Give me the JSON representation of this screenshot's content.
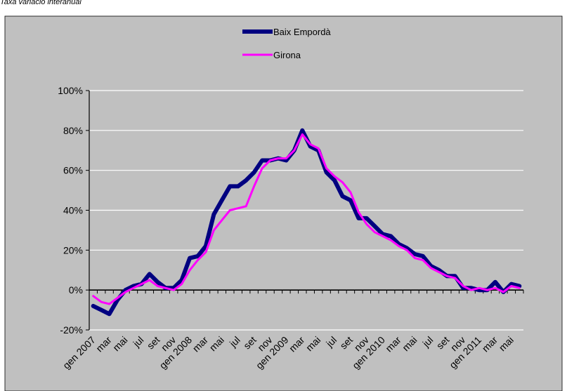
{
  "header": {
    "subtitle": "Taxa variació interanual"
  },
  "chart_data": {
    "type": "line",
    "title": "",
    "xlabel": "",
    "ylabel": "",
    "ylim": [
      -20,
      100
    ],
    "y_ticks": [
      "-20%",
      "0%",
      "20%",
      "40%",
      "60%",
      "80%",
      "100%"
    ],
    "y_tick_values": [
      -20,
      0,
      20,
      40,
      60,
      80,
      100
    ],
    "grid": true,
    "legend_position": "top-center",
    "plot_background": "#c0c0c0",
    "categories": [
      "gen 2007",
      "feb",
      "mar",
      "abr",
      "mai",
      "jun",
      "jul",
      "ago",
      "set",
      "oct",
      "nov",
      "des",
      "gen 2008",
      "feb",
      "mar",
      "abr",
      "mai",
      "jun",
      "jul",
      "ago",
      "set",
      "oct",
      "nov",
      "des",
      "gen 2009",
      "feb",
      "mar",
      "abr",
      "mai",
      "jun",
      "jul",
      "ago",
      "set",
      "oct",
      "nov",
      "des",
      "gen 2010",
      "feb",
      "mar",
      "abr",
      "mai",
      "jun",
      "jul",
      "ago",
      "set",
      "oct",
      "nov",
      "des",
      "gen 2011",
      "feb",
      "mar",
      "abr",
      "mai",
      "jun"
    ],
    "x_tick_labels": [
      "gen 2007",
      "mar",
      "mai",
      "jul",
      "set",
      "nov",
      "gen 2008",
      "mar",
      "mai",
      "jul",
      "set",
      "nov",
      "gen 2009",
      "mar",
      "mai",
      "jul",
      "set",
      "nov",
      "gen 2010",
      "mar",
      "mai",
      "jul",
      "set",
      "nov",
      "gen 2011",
      "mar",
      "mai"
    ],
    "series": [
      {
        "name": "Baix Empordà",
        "color": "#000080",
        "values": [
          -8,
          -10,
          -12,
          -5,
          0,
          2,
          3,
          8,
          4,
          1,
          1,
          5,
          16,
          17,
          22,
          38,
          45,
          52,
          52,
          55,
          59,
          65,
          65,
          66,
          65,
          70,
          80,
          72,
          70,
          59,
          55,
          47,
          45,
          36,
          36,
          32,
          28,
          27,
          23,
          21,
          18,
          17,
          12,
          10,
          7,
          7,
          1,
          1,
          0,
          0,
          4,
          -1,
          3,
          2
        ]
      },
      {
        "name": "Girona",
        "color": "#ff00ff",
        "values": [
          -3,
          -6,
          -7,
          -4,
          -1,
          1,
          3,
          5,
          2,
          1,
          0,
          3,
          10,
          15,
          19,
          30,
          35,
          40,
          41,
          42,
          52,
          61,
          65,
          66,
          66,
          70,
          78,
          73,
          71,
          61,
          57,
          54,
          49,
          39,
          33,
          29,
          27,
          25,
          22,
          20,
          16,
          15,
          11,
          9,
          7,
          6,
          2,
          0,
          1,
          0,
          1,
          -1,
          2,
          1
        ]
      }
    ]
  }
}
